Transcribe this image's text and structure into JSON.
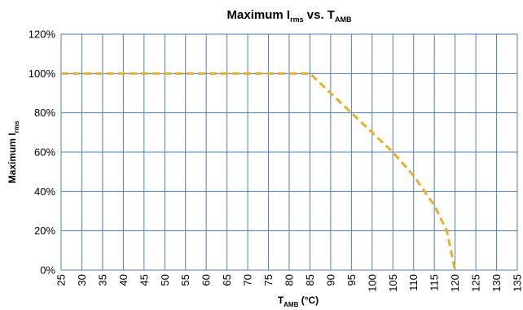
{
  "chart_data": {
    "type": "line",
    "title": {
      "main": "Maximum I",
      "sub": "rms",
      "mid": " vs. T",
      "sub2": "AMB"
    },
    "xlabel": {
      "main": "T",
      "sub": "AMB",
      "rest": " (°C)"
    },
    "ylabel": {
      "main": "Maximum I",
      "sub": "rms"
    },
    "xlim": [
      25,
      135
    ],
    "x_ticks": [
      "25",
      "30",
      "35",
      "40",
      "45",
      "50",
      "55",
      "60",
      "65",
      "70",
      "75",
      "80",
      "85",
      "90",
      "95",
      "100",
      "105",
      "110",
      "115",
      "120",
      "125",
      "130",
      "135"
    ],
    "ylim": [
      0,
      120
    ],
    "y_ticks": [
      "0%",
      "20%",
      "40%",
      "60%",
      "80%",
      "100%",
      "120%"
    ],
    "grid": true,
    "legend": "none",
    "series": [
      {
        "color": "#e8ae2c",
        "style": "dashed",
        "x": [
          25,
          85,
          90,
          95,
          100,
          105,
          110,
          115,
          118,
          120
        ],
        "y": [
          100,
          100,
          90,
          80,
          70,
          60,
          48,
          33,
          20,
          0
        ]
      }
    ]
  }
}
